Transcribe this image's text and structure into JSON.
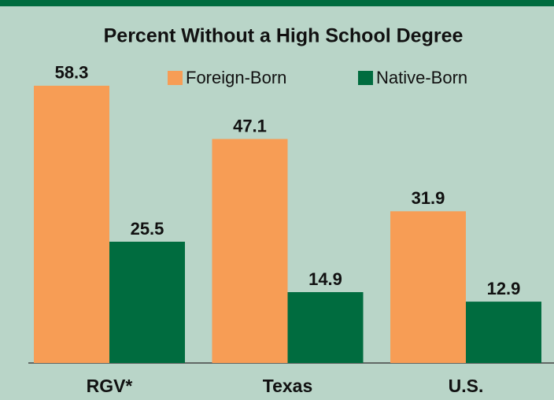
{
  "chart_data": {
    "type": "bar",
    "title": "Percent Without a High School Degree",
    "categories": [
      "RGV*",
      "Texas",
      "U.S."
    ],
    "series": [
      {
        "name": "Foreign-Born",
        "color": "#f79d55",
        "values": [
          58.3,
          47.1,
          31.9
        ]
      },
      {
        "name": "Native-Born",
        "color": "#006c3f",
        "values": [
          25.5,
          14.9,
          12.9
        ]
      }
    ],
    "legend": "top-right"
  }
}
